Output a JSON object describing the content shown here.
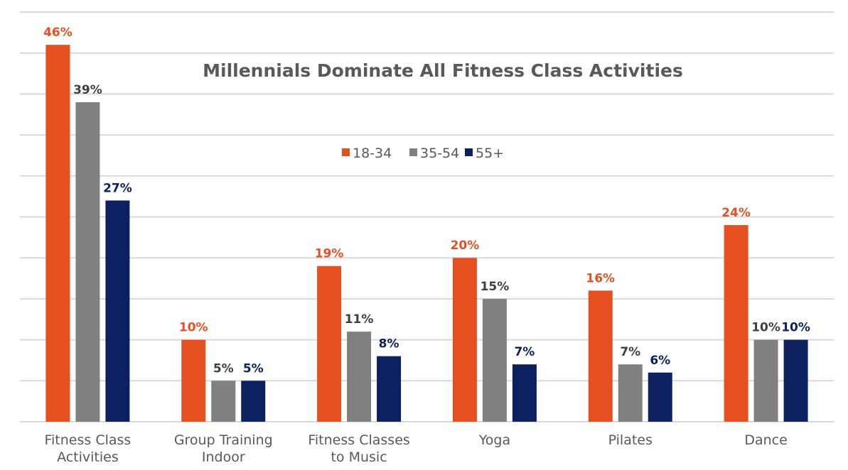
{
  "chart_data": {
    "type": "bar",
    "title": "Millennials Dominate All Fitness Class Activities",
    "xlabel": "",
    "ylabel": "",
    "ylim": [
      0,
      50
    ],
    "grid": true,
    "legend_position": "top-center",
    "categories": [
      [
        "Fitness Class",
        "Activities"
      ],
      [
        "Group Training",
        "Indoor"
      ],
      [
        "Fitness Classes",
        "to Music"
      ],
      [
        "Yoga"
      ],
      [
        "Pilates"
      ],
      [
        "Dance"
      ]
    ],
    "series": [
      {
        "name": "18-34",
        "color": "#e4501f",
        "label_color": "#e4501f",
        "values": [
          46,
          10,
          19,
          20,
          16,
          24
        ],
        "labels": [
          "46%",
          "10%",
          "19%",
          "20%",
          "16%",
          "24%"
        ]
      },
      {
        "name": "35-54",
        "color": "#808080",
        "label_color": "#404040",
        "values": [
          39,
          5,
          11,
          15,
          7,
          10
        ],
        "labels": [
          "39%",
          "5%",
          "11%",
          "15%",
          "7%",
          "10%"
        ]
      },
      {
        "name": "55+",
        "color": "#0d2160",
        "label_color": "#0d2160",
        "values": [
          27,
          5,
          8,
          7,
          6,
          10
        ],
        "labels": [
          "27%",
          "5%",
          "8%",
          "7%",
          "6%",
          "10%"
        ]
      }
    ]
  }
}
